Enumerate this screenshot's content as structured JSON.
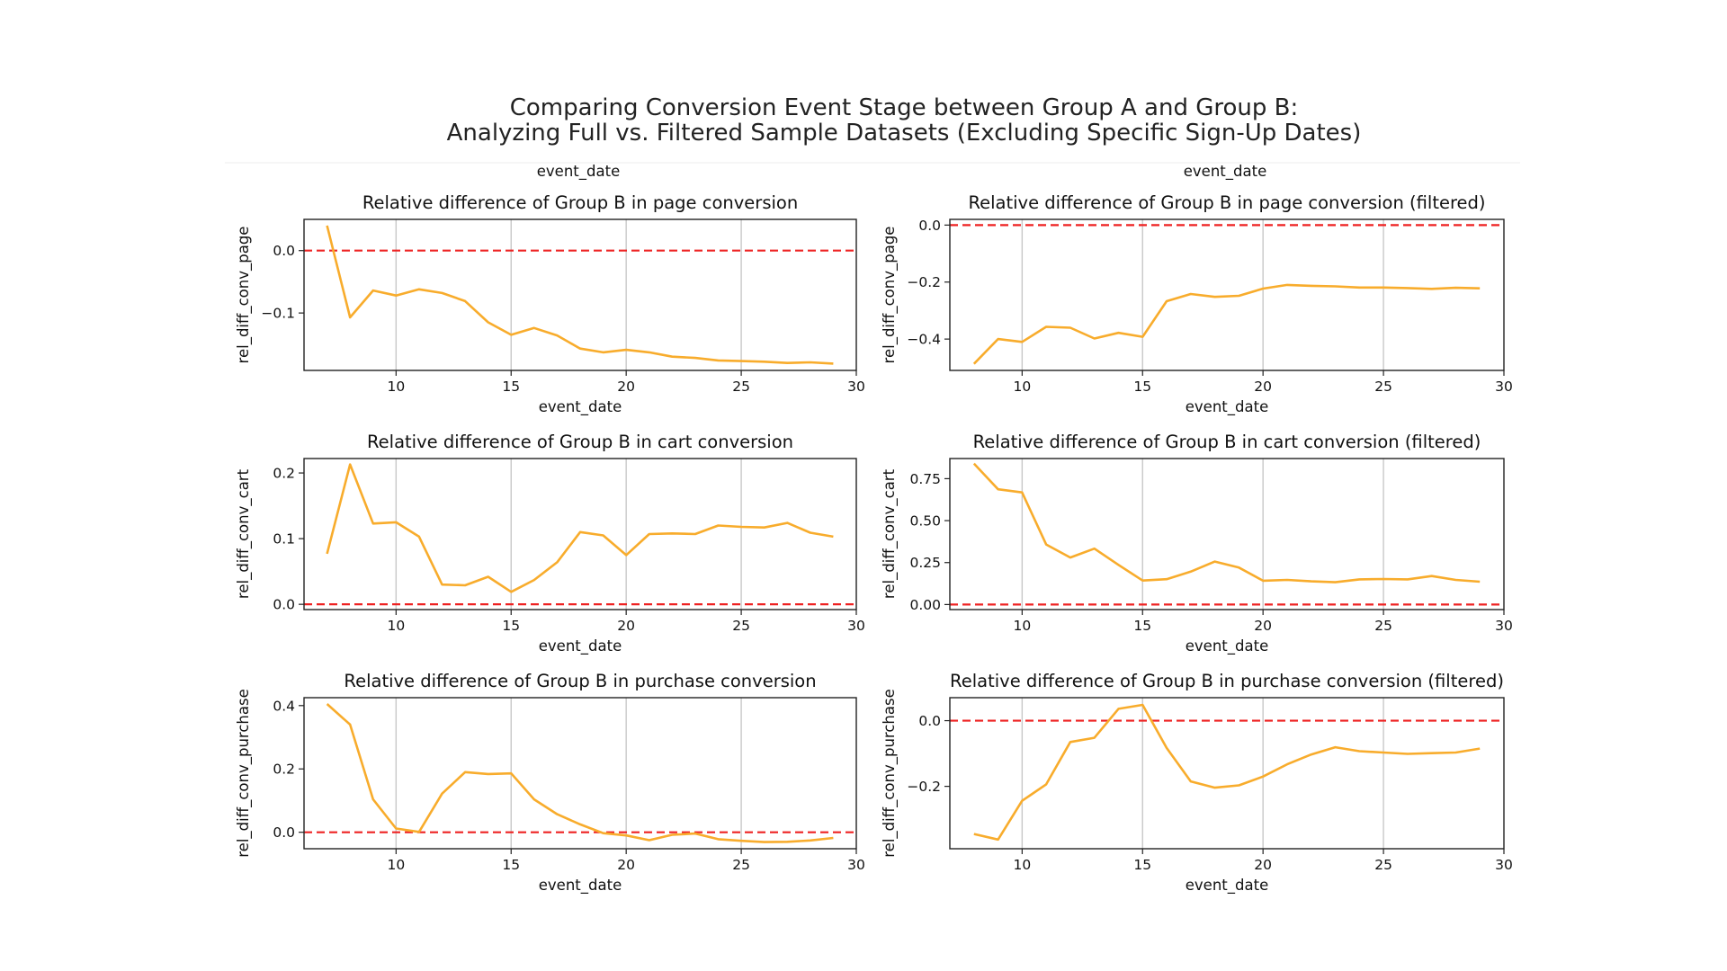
{
  "figure": {
    "title_line1": "Comparing Conversion Event Stage between Group A and Group B:",
    "title_line2": "Analyzing Full vs. Filtered Sample Datasets (Excluding Specific Sign-Up Dates)",
    "top_labels": [
      "event_date",
      "event_date"
    ]
  },
  "colors": {
    "line": "#f8ac2c",
    "reference": "#ee2222",
    "grid": "#c8c8c8",
    "axes": "#222222"
  },
  "chart_data": [
    {
      "type": "line",
      "title": "Relative difference of Group B in page conversion",
      "xlabel": "event_date",
      "ylabel": "rel_diff_conv_page",
      "xlim": [
        6,
        30
      ],
      "ylim": [
        -0.192,
        0.05
      ],
      "xticks": [
        10,
        15,
        20,
        25,
        30
      ],
      "yticks": [
        -0.1,
        0.0
      ],
      "ytick_labels": [
        "−0.1",
        "0.0"
      ],
      "grid": "x",
      "reference_line": 0.0,
      "x": [
        7,
        8,
        9,
        10,
        11,
        12,
        13,
        14,
        15,
        16,
        17,
        18,
        19,
        20,
        21,
        22,
        23,
        24,
        25,
        26,
        27,
        28,
        29
      ],
      "values": [
        0.04,
        -0.107,
        -0.064,
        -0.072,
        -0.062,
        -0.068,
        -0.081,
        -0.115,
        -0.135,
        -0.124,
        -0.136,
        -0.157,
        -0.163,
        -0.159,
        -0.163,
        -0.17,
        -0.172,
        -0.176,
        -0.177,
        -0.178,
        -0.18,
        -0.179,
        -0.181
      ]
    },
    {
      "type": "line",
      "title": "Relative difference of Group B in page conversion (filtered)",
      "xlabel": "event_date",
      "ylabel": "rel_diff_conv_page",
      "xlim": [
        7,
        30
      ],
      "ylim": [
        -0.51,
        0.02
      ],
      "xticks": [
        10,
        15,
        20,
        25,
        30
      ],
      "yticks": [
        -0.4,
        -0.2,
        0.0
      ],
      "ytick_labels": [
        "−0.4",
        "−0.2",
        "0.0"
      ],
      "grid": "x",
      "reference_line": 0.0,
      "x": [
        8,
        9,
        10,
        11,
        12,
        13,
        14,
        15,
        16,
        17,
        18,
        19,
        20,
        21,
        22,
        23,
        24,
        25,
        26,
        27,
        28,
        29
      ],
      "values": [
        -0.487,
        -0.4,
        -0.41,
        -0.357,
        -0.36,
        -0.398,
        -0.378,
        -0.392,
        -0.267,
        -0.242,
        -0.252,
        -0.248,
        -0.223,
        -0.21,
        -0.213,
        -0.215,
        -0.219,
        -0.219,
        -0.221,
        -0.224,
        -0.22,
        -0.222
      ]
    },
    {
      "type": "line",
      "title": "Relative difference of Group B in cart conversion",
      "xlabel": "event_date",
      "ylabel": "rel_diff_conv_cart",
      "xlim": [
        6,
        30
      ],
      "ylim": [
        -0.008,
        0.222
      ],
      "xticks": [
        10,
        15,
        20,
        25,
        30
      ],
      "yticks": [
        0.0,
        0.1,
        0.2
      ],
      "ytick_labels": [
        "0.0",
        "0.1",
        "0.2"
      ],
      "grid": "x",
      "reference_line": 0.0,
      "x": [
        7,
        8,
        9,
        10,
        11,
        12,
        13,
        14,
        15,
        16,
        17,
        18,
        19,
        20,
        21,
        22,
        23,
        24,
        25,
        26,
        27,
        28,
        29
      ],
      "values": [
        0.077,
        0.213,
        0.123,
        0.125,
        0.103,
        0.03,
        0.029,
        0.042,
        0.019,
        0.037,
        0.064,
        0.11,
        0.105,
        0.075,
        0.107,
        0.108,
        0.107,
        0.12,
        0.118,
        0.117,
        0.124,
        0.109,
        0.103
      ]
    },
    {
      "type": "line",
      "title": "Relative difference of Group B in cart conversion (filtered)",
      "xlabel": "event_date",
      "ylabel": "rel_diff_conv_cart",
      "xlim": [
        7,
        30
      ],
      "ylim": [
        -0.03,
        0.87
      ],
      "xticks": [
        10,
        15,
        20,
        25,
        30
      ],
      "yticks": [
        0.0,
        0.25,
        0.5,
        0.75
      ],
      "ytick_labels": [
        "0.00",
        "0.25",
        "0.50",
        "0.75"
      ],
      "grid": "x",
      "reference_line": 0.0,
      "x": [
        8,
        9,
        10,
        11,
        12,
        13,
        14,
        15,
        16,
        17,
        18,
        19,
        20,
        21,
        22,
        23,
        24,
        25,
        26,
        27,
        28,
        29
      ],
      "values": [
        0.84,
        0.687,
        0.668,
        0.358,
        0.28,
        0.333,
        0.236,
        0.143,
        0.151,
        0.196,
        0.256,
        0.22,
        0.142,
        0.147,
        0.138,
        0.133,
        0.15,
        0.152,
        0.15,
        0.17,
        0.147,
        0.136
      ]
    },
    {
      "type": "line",
      "title": "Relative difference of Group B in purchase conversion",
      "xlabel": "event_date",
      "ylabel": "rel_diff_conv_purchase",
      "xlim": [
        6,
        30
      ],
      "ylim": [
        -0.052,
        0.425
      ],
      "xticks": [
        10,
        15,
        20,
        25,
        30
      ],
      "yticks": [
        0.0,
        0.2,
        0.4
      ],
      "ytick_labels": [
        "0.0",
        "0.2",
        "0.4"
      ],
      "grid": "x",
      "reference_line": 0.0,
      "x": [
        7,
        8,
        9,
        10,
        11,
        12,
        13,
        14,
        15,
        16,
        17,
        18,
        19,
        20,
        21,
        22,
        23,
        24,
        25,
        26,
        27,
        28,
        29
      ],
      "values": [
        0.405,
        0.34,
        0.104,
        0.012,
        0.001,
        0.122,
        0.19,
        0.184,
        0.186,
        0.104,
        0.057,
        0.025,
        -0.003,
        -0.01,
        -0.025,
        -0.008,
        -0.004,
        -0.022,
        -0.027,
        -0.031,
        -0.03,
        -0.026,
        -0.018
      ]
    },
    {
      "type": "line",
      "title": "Relative difference of Group B in purchase conversion (filtered)",
      "xlabel": "event_date",
      "ylabel": "rel_diff_conv_purchase",
      "xlim": [
        7,
        30
      ],
      "ylim": [
        -0.39,
        0.07
      ],
      "xticks": [
        10,
        15,
        20,
        25,
        30
      ],
      "yticks": [
        -0.2,
        0.0
      ],
      "ytick_labels": [
        "−0.2",
        "0.0"
      ],
      "grid": "x",
      "reference_line": 0.0,
      "x": [
        8,
        9,
        10,
        11,
        12,
        13,
        14,
        15,
        16,
        17,
        18,
        19,
        20,
        21,
        22,
        23,
        24,
        25,
        26,
        27,
        28,
        29
      ],
      "values": [
        -0.345,
        -0.362,
        -0.244,
        -0.194,
        -0.065,
        -0.052,
        0.036,
        0.048,
        -0.083,
        -0.185,
        -0.204,
        -0.197,
        -0.17,
        -0.133,
        -0.103,
        -0.081,
        -0.093,
        -0.097,
        -0.101,
        -0.099,
        -0.097,
        -0.085
      ]
    }
  ]
}
